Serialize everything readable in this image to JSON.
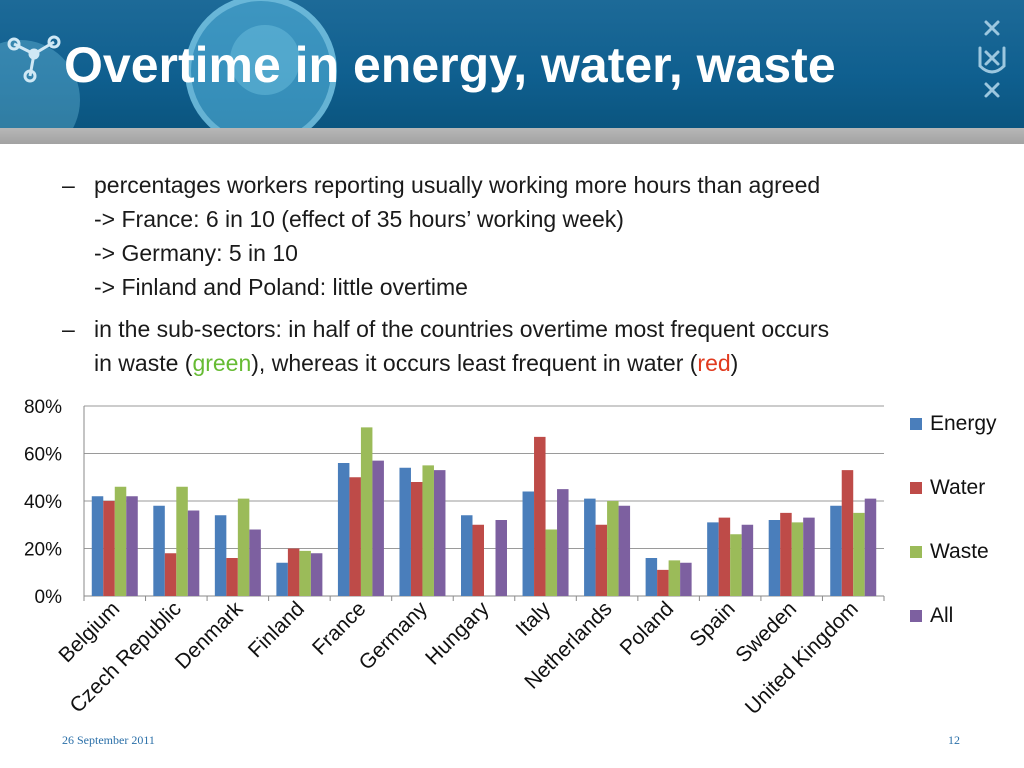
{
  "slide": {
    "title": "Overtime in energy, water, waste",
    "bullets": [
      {
        "dash": "–",
        "lines": [
          "percentages workers reporting usually working more hours than agreed",
          "-> France: 6 in 10 (effect of 35 hours’ working week)",
          "-> Germany: 5 in 10",
          "-> Finland and Poland: little overtime"
        ]
      },
      {
        "dash": "–",
        "line1": "in the sub-sectors: in half of the countries overtime most frequent occurs",
        "line2_pre": "in waste (",
        "line2_green": "green",
        "line2_mid": "), whereas it occurs least frequent in water (",
        "line2_red": "red",
        "line2_post": ")"
      }
    ],
    "footer_date": "26 September 2011",
    "page_number": "12",
    "colors": {
      "header": "#0f5f8f",
      "accent_green": "#66bb33",
      "accent_red": "#e13a1e"
    },
    "logo_icon": "university-logo-icon"
  },
  "chart_data": {
    "type": "bar",
    "title": "",
    "xlabel": "",
    "ylabel": "",
    "ylim": [
      0,
      80
    ],
    "yticks": [
      "0%",
      "20%",
      "40%",
      "60%",
      "80%"
    ],
    "grid": true,
    "legend_position": "right",
    "categories": [
      "Belgium",
      "Czech Republic",
      "Denmark",
      "Finland",
      "France",
      "Germany",
      "Hungary",
      "Italy",
      "Netherlands",
      "Poland",
      "Spain",
      "Sweden",
      "United Kingdom"
    ],
    "series": [
      {
        "name": "Energy",
        "color": "#4a7ebb",
        "values": [
          42,
          38,
          34,
          14,
          56,
          54,
          34,
          44,
          41,
          16,
          31,
          32,
          38
        ]
      },
      {
        "name": "Water",
        "color": "#be4b48",
        "values": [
          40,
          18,
          16,
          20,
          50,
          48,
          30,
          67,
          30,
          11,
          33,
          35,
          53
        ]
      },
      {
        "name": "Waste",
        "color": "#9bbb59",
        "values": [
          46,
          46,
          41,
          19,
          71,
          55,
          0,
          28,
          40,
          15,
          26,
          31,
          35
        ]
      },
      {
        "name": "All",
        "color": "#7d60a0",
        "values": [
          42,
          36,
          28,
          18,
          57,
          53,
          32,
          45,
          38,
          14,
          30,
          33,
          41
        ]
      }
    ]
  }
}
